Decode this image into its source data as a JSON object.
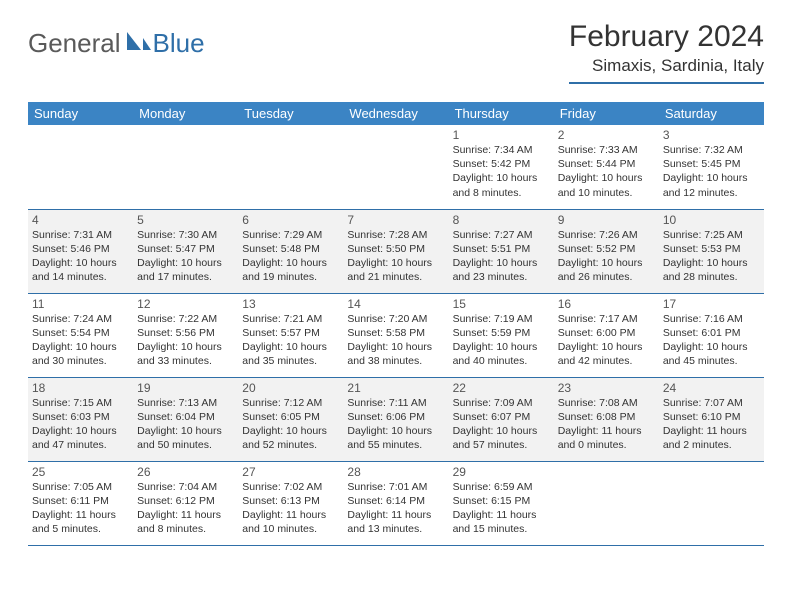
{
  "logo": {
    "general": "General",
    "blue": "Blue"
  },
  "title": "February 2024",
  "location": "Simaxis, Sardinia, Italy",
  "colors": {
    "header_bg": "#3b84c4",
    "header_text": "#ffffff",
    "rule": "#2f6fa8",
    "alt_row_bg": "#f2f2f2",
    "logo_gray": "#5a5a5a",
    "logo_blue": "#2f6fa8"
  },
  "day_headers": [
    "Sunday",
    "Monday",
    "Tuesday",
    "Wednesday",
    "Thursday",
    "Friday",
    "Saturday"
  ],
  "layout": {
    "rows": 5,
    "cols": 7,
    "first_day_col": 4,
    "days_in_month": 29,
    "cell_fontsize": 10.5,
    "daynum_fontsize": 12
  },
  "days": [
    {
      "n": 1,
      "sunrise": "7:34 AM",
      "sunset": "5:42 PM",
      "daylight": "10 hours and 8 minutes."
    },
    {
      "n": 2,
      "sunrise": "7:33 AM",
      "sunset": "5:44 PM",
      "daylight": "10 hours and 10 minutes."
    },
    {
      "n": 3,
      "sunrise": "7:32 AM",
      "sunset": "5:45 PM",
      "daylight": "10 hours and 12 minutes."
    },
    {
      "n": 4,
      "sunrise": "7:31 AM",
      "sunset": "5:46 PM",
      "daylight": "10 hours and 14 minutes."
    },
    {
      "n": 5,
      "sunrise": "7:30 AM",
      "sunset": "5:47 PM",
      "daylight": "10 hours and 17 minutes."
    },
    {
      "n": 6,
      "sunrise": "7:29 AM",
      "sunset": "5:48 PM",
      "daylight": "10 hours and 19 minutes."
    },
    {
      "n": 7,
      "sunrise": "7:28 AM",
      "sunset": "5:50 PM",
      "daylight": "10 hours and 21 minutes."
    },
    {
      "n": 8,
      "sunrise": "7:27 AM",
      "sunset": "5:51 PM",
      "daylight": "10 hours and 23 minutes."
    },
    {
      "n": 9,
      "sunrise": "7:26 AM",
      "sunset": "5:52 PM",
      "daylight": "10 hours and 26 minutes."
    },
    {
      "n": 10,
      "sunrise": "7:25 AM",
      "sunset": "5:53 PM",
      "daylight": "10 hours and 28 minutes."
    },
    {
      "n": 11,
      "sunrise": "7:24 AM",
      "sunset": "5:54 PM",
      "daylight": "10 hours and 30 minutes."
    },
    {
      "n": 12,
      "sunrise": "7:22 AM",
      "sunset": "5:56 PM",
      "daylight": "10 hours and 33 minutes."
    },
    {
      "n": 13,
      "sunrise": "7:21 AM",
      "sunset": "5:57 PM",
      "daylight": "10 hours and 35 minutes."
    },
    {
      "n": 14,
      "sunrise": "7:20 AM",
      "sunset": "5:58 PM",
      "daylight": "10 hours and 38 minutes."
    },
    {
      "n": 15,
      "sunrise": "7:19 AM",
      "sunset": "5:59 PM",
      "daylight": "10 hours and 40 minutes."
    },
    {
      "n": 16,
      "sunrise": "7:17 AM",
      "sunset": "6:00 PM",
      "daylight": "10 hours and 42 minutes."
    },
    {
      "n": 17,
      "sunrise": "7:16 AM",
      "sunset": "6:01 PM",
      "daylight": "10 hours and 45 minutes."
    },
    {
      "n": 18,
      "sunrise": "7:15 AM",
      "sunset": "6:03 PM",
      "daylight": "10 hours and 47 minutes."
    },
    {
      "n": 19,
      "sunrise": "7:13 AM",
      "sunset": "6:04 PM",
      "daylight": "10 hours and 50 minutes."
    },
    {
      "n": 20,
      "sunrise": "7:12 AM",
      "sunset": "6:05 PM",
      "daylight": "10 hours and 52 minutes."
    },
    {
      "n": 21,
      "sunrise": "7:11 AM",
      "sunset": "6:06 PM",
      "daylight": "10 hours and 55 minutes."
    },
    {
      "n": 22,
      "sunrise": "7:09 AM",
      "sunset": "6:07 PM",
      "daylight": "10 hours and 57 minutes."
    },
    {
      "n": 23,
      "sunrise": "7:08 AM",
      "sunset": "6:08 PM",
      "daylight": "11 hours and 0 minutes."
    },
    {
      "n": 24,
      "sunrise": "7:07 AM",
      "sunset": "6:10 PM",
      "daylight": "11 hours and 2 minutes."
    },
    {
      "n": 25,
      "sunrise": "7:05 AM",
      "sunset": "6:11 PM",
      "daylight": "11 hours and 5 minutes."
    },
    {
      "n": 26,
      "sunrise": "7:04 AM",
      "sunset": "6:12 PM",
      "daylight": "11 hours and 8 minutes."
    },
    {
      "n": 27,
      "sunrise": "7:02 AM",
      "sunset": "6:13 PM",
      "daylight": "11 hours and 10 minutes."
    },
    {
      "n": 28,
      "sunrise": "7:01 AM",
      "sunset": "6:14 PM",
      "daylight": "11 hours and 13 minutes."
    },
    {
      "n": 29,
      "sunrise": "6:59 AM",
      "sunset": "6:15 PM",
      "daylight": "11 hours and 15 minutes."
    }
  ],
  "labels": {
    "sunrise": "Sunrise: ",
    "sunset": "Sunset: ",
    "daylight": "Daylight: "
  }
}
